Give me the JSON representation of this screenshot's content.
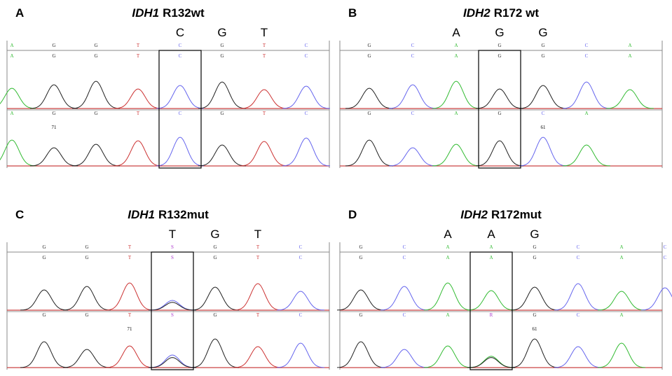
{
  "panels": [
    {
      "letter": "A",
      "gene": "IDH1",
      "variant": "R132wt",
      "codon": [
        "C",
        "G",
        "T"
      ],
      "top_calls": [
        "A",
        "G",
        "G",
        "T",
        "C",
        "G",
        "T",
        "C"
      ],
      "top_calls_2": [
        "A",
        "G",
        "G",
        "T",
        "C",
        "G",
        "T",
        "C"
      ],
      "bottom_calls": [
        "A",
        "G",
        "G",
        "T",
        "C",
        "G",
        "T",
        "C"
      ],
      "position": "71"
    },
    {
      "letter": "B",
      "gene": "IDH2",
      "variant": "R172 wt",
      "codon": [
        "A",
        "G",
        "G"
      ],
      "top_calls": [
        "G",
        "C",
        "A",
        "G",
        "G",
        "C",
        "A"
      ],
      "top_calls_2": [
        "G",
        "C",
        "A",
        "G",
        "G",
        "C",
        "A"
      ],
      "bottom_calls": [
        "G",
        "C",
        "A",
        "G",
        "C",
        "A"
      ],
      "position": "61"
    },
    {
      "letter": "C",
      "gene": "IDH1",
      "variant": "R132mut",
      "codon": [
        "T",
        "G",
        "T"
      ],
      "top_calls": [
        "G",
        "G",
        "T",
        "S",
        "G",
        "T",
        "C"
      ],
      "top_calls_2": [
        "G",
        "G",
        "T",
        "S",
        "G",
        "T",
        "C"
      ],
      "bottom_calls": [
        "G",
        "G",
        "T",
        "S",
        "G",
        "T",
        "C"
      ],
      "position": "71"
    },
    {
      "letter": "D",
      "gene": "IDH2",
      "variant": "R172mut",
      "codon": [
        "A",
        "A",
        "G"
      ],
      "top_calls": [
        "G",
        "C",
        "A",
        "A",
        "G",
        "C",
        "A",
        "C"
      ],
      "top_calls_2": [
        "G",
        "C",
        "A",
        "A",
        "G",
        "C",
        "A",
        "C"
      ],
      "bottom_calls": [
        "G",
        "C",
        "A",
        "R",
        "G",
        "C",
        "A"
      ],
      "position": "61"
    }
  ],
  "base_colors": {
    "A": "#33bb33",
    "C": "#6666ee",
    "G": "#222222",
    "T": "#cc3333",
    "S": "#aa33cc",
    "R": "#aa33cc"
  }
}
